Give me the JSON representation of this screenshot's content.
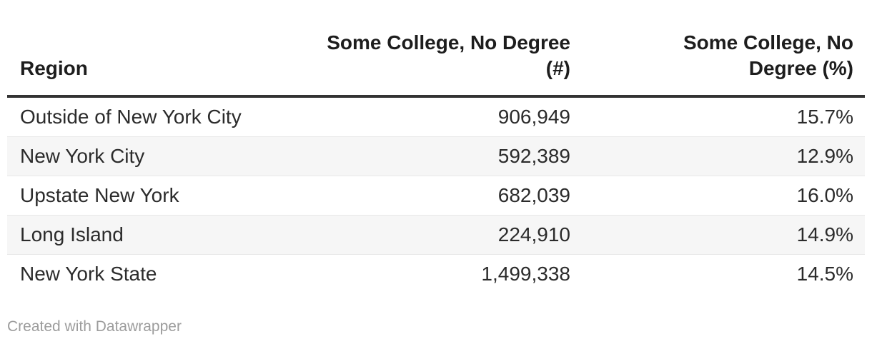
{
  "chart_data": {
    "type": "table",
    "columns": [
      "Region",
      "Some College, No Degree (#)",
      "Some College, No Degree (%)"
    ],
    "rows": [
      [
        "Outside of New York City",
        906949,
        "15.7%"
      ],
      [
        "New York City",
        592389,
        "12.9%"
      ],
      [
        "Upstate New York",
        682039,
        "16.0%"
      ],
      [
        "Long Island",
        224910,
        "14.9%"
      ],
      [
        "New York State",
        1499338,
        "14.5%"
      ]
    ],
    "legend_position": "none",
    "grid": "row-stripes"
  },
  "table": {
    "header": {
      "region": {
        "label": "Region",
        "lines": [
          "Region"
        ]
      },
      "count": {
        "label": "Some College, No Degree (#)",
        "lines": [
          "Some College, No Degree",
          "(#)"
        ]
      },
      "percent": {
        "label": "Some College, No Degree (%)",
        "lines": [
          "Some College, No",
          "Degree (%)"
        ]
      }
    },
    "rows": [
      {
        "region": "Outside of New York City",
        "count": "906,949",
        "percent": "15.7%"
      },
      {
        "region": "New York City",
        "count": "592,389",
        "percent": "12.9%"
      },
      {
        "region": "Upstate New York",
        "count": "682,039",
        "percent": "16.0%"
      },
      {
        "region": "Long Island",
        "count": "224,910",
        "percent": "14.9%"
      },
      {
        "region": "New York State",
        "count": "1,499,338",
        "percent": "14.5%"
      }
    ]
  },
  "footer": {
    "credit": "Created with Datawrapper"
  },
  "colors": {
    "background": "#ffffff",
    "header_text": "#1d1d1d",
    "body_text": "#2b2b2b",
    "header_rule": "#333333",
    "row_stripe": "#f6f6f6",
    "row_divider": "#e8e8e8",
    "footer_text": "#9c9c9c"
  }
}
